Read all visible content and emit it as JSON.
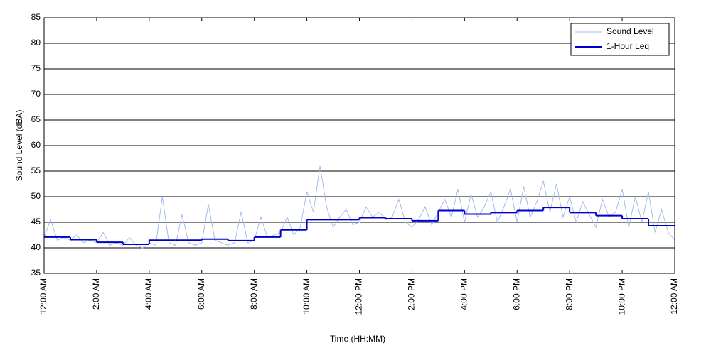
{
  "chart_data": {
    "type": "line",
    "xlabel": "Time (HH:MM)",
    "ylabel": "Sound Level (dBA)",
    "xlim": [
      0,
      24
    ],
    "xticks": [
      {
        "value": 0,
        "label": "12:00 AM"
      },
      {
        "value": 2,
        "label": "2:00 AM"
      },
      {
        "value": 4,
        "label": "4:00 AM"
      },
      {
        "value": 6,
        "label": "6:00 AM"
      },
      {
        "value": 8,
        "label": "8:00 AM"
      },
      {
        "value": 10,
        "label": "10:00 AM"
      },
      {
        "value": 12,
        "label": "12:00 PM"
      },
      {
        "value": 14,
        "label": "2:00 PM"
      },
      {
        "value": 16,
        "label": "4:00 PM"
      },
      {
        "value": 18,
        "label": "6:00 PM"
      },
      {
        "value": 20,
        "label": "8:00 PM"
      },
      {
        "value": 22,
        "label": "10:00 PM"
      },
      {
        "value": 24,
        "label": "12:00 AM"
      }
    ],
    "ylim": [
      35,
      85
    ],
    "yticks": [
      35,
      40,
      45,
      50,
      55,
      60,
      65,
      70,
      75,
      80,
      85
    ],
    "grid": true,
    "legend": "upper right",
    "series": [
      {
        "name": "Sound Level",
        "color": "#a3bbf2",
        "style": "line",
        "x": [
          0,
          0.25,
          0.5,
          0.75,
          1,
          1.25,
          1.5,
          1.75,
          2,
          2.25,
          2.5,
          2.75,
          3,
          3.25,
          3.5,
          3.75,
          4,
          4.25,
          4.5,
          4.75,
          5,
          5.25,
          5.5,
          5.75,
          6,
          6.25,
          6.5,
          6.75,
          7,
          7.25,
          7.5,
          7.75,
          8,
          8.25,
          8.5,
          8.75,
          9,
          9.25,
          9.5,
          9.75,
          10,
          10.25,
          10.5,
          10.75,
          11,
          11.25,
          11.5,
          11.75,
          12,
          12.25,
          12.5,
          12.75,
          13,
          13.25,
          13.5,
          13.75,
          14,
          14.25,
          14.5,
          14.75,
          15,
          15.25,
          15.5,
          15.75,
          16,
          16.25,
          16.5,
          16.75,
          17,
          17.25,
          17.5,
          17.75,
          18,
          18.25,
          18.5,
          18.75,
          19,
          19.25,
          19.5,
          19.75,
          20,
          20.25,
          20.5,
          20.75,
          21,
          21.25,
          21.5,
          21.75,
          22,
          22.25,
          22.5,
          22.75,
          23,
          23.25,
          23.5,
          23.75,
          24
        ],
        "values": [
          42,
          45.5,
          41.5,
          42,
          41.5,
          42.5,
          41,
          41.5,
          41,
          43,
          40.5,
          41,
          40.5,
          42,
          40.5,
          40,
          41,
          40.5,
          50,
          41,
          40.5,
          46.5,
          41,
          40.5,
          41,
          48.5,
          41.5,
          41,
          40.5,
          41,
          47,
          41,
          41.5,
          46,
          42,
          42.5,
          43,
          46,
          42.5,
          44,
          51,
          47,
          56,
          48,
          44,
          46,
          47.5,
          44.5,
          45,
          48,
          46,
          47,
          45.5,
          46,
          49.5,
          45,
          44,
          45.5,
          48,
          44.5,
          47,
          49.5,
          46,
          51.5,
          45,
          50.5,
          46,
          48,
          51,
          45,
          48,
          51.5,
          45,
          52,
          46,
          49,
          53,
          47,
          52.5,
          46,
          50,
          45,
          49,
          46.5,
          44,
          49.5,
          46,
          47,
          51.5,
          44,
          50,
          45,
          51,
          43,
          47.5,
          43,
          41.5
        ]
      },
      {
        "name": "1-Hour Leq",
        "color": "#0000cc",
        "style": "step",
        "x": [
          0,
          1,
          2,
          3,
          4,
          5,
          6,
          7,
          8,
          9,
          10,
          11,
          12,
          13,
          14,
          15,
          16,
          17,
          18,
          19,
          20,
          21,
          22,
          23
        ],
        "values": [
          42.1,
          41.6,
          41.1,
          40.7,
          41.5,
          41.5,
          41.7,
          41.4,
          42.1,
          43.5,
          45.5,
          45.5,
          45.9,
          45.7,
          45.3,
          47.3,
          46.6,
          46.9,
          47.3,
          47.9,
          46.9,
          46.3,
          45.7,
          44.3
        ]
      }
    ]
  }
}
